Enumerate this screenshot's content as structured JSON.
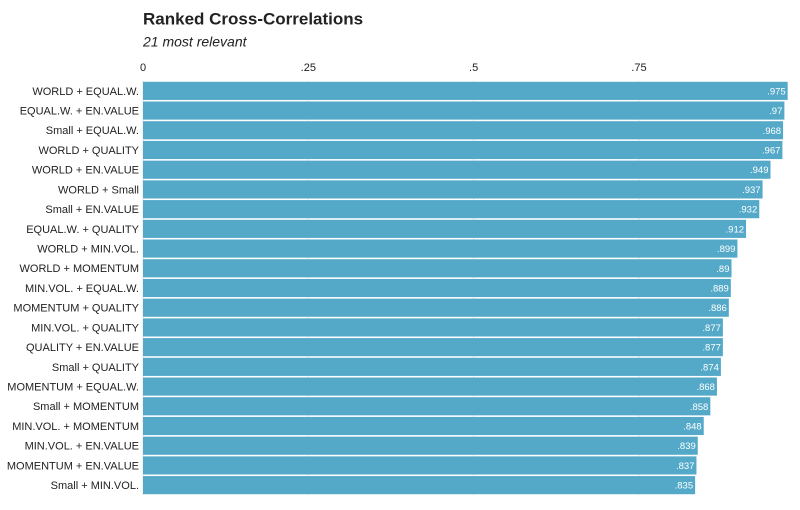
{
  "chart_data": {
    "type": "barh",
    "title": "Ranked Cross-Correlations",
    "subtitle": "21 most relevant",
    "categories": [
      "WORLD + EQUAL.W.",
      "EQUAL.W. + EN.VALUE",
      "Small + EQUAL.W.",
      "WORLD + QUALITY",
      "WORLD + EN.VALUE",
      "WORLD + Small",
      "Small + EN.VALUE",
      "EQUAL.W. + QUALITY",
      "WORLD + MIN.VOL.",
      "WORLD + MOMENTUM",
      "MIN.VOL. + EQUAL.W.",
      "MOMENTUM + QUALITY",
      "MIN.VOL. + QUALITY",
      "QUALITY + EN.VALUE",
      "Small + QUALITY",
      "MOMENTUM + EQUAL.W.",
      "Small + MOMENTUM",
      "MIN.VOL. + MOMENTUM",
      "MIN.VOL. + EN.VALUE",
      "MOMENTUM + EN.VALUE",
      "Small + MIN.VOL."
    ],
    "values": [
      0.975,
      0.97,
      0.968,
      0.967,
      0.949,
      0.937,
      0.932,
      0.912,
      0.899,
      0.89,
      0.889,
      0.886,
      0.877,
      0.877,
      0.874,
      0.868,
      0.858,
      0.848,
      0.839,
      0.837,
      0.835
    ],
    "value_labels": [
      ".975",
      ".97",
      ".968",
      ".967",
      ".949",
      ".937",
      ".932",
      ".912",
      ".899",
      ".89",
      ".889",
      ".886",
      ".877",
      ".877",
      ".874",
      ".868",
      ".858",
      ".848",
      ".839",
      ".837",
      ".835"
    ],
    "color": "#54a9c9",
    "xlim": [
      0,
      0.98
    ],
    "xticks": [
      0,
      {
        "value": 0.25,
        "label": ".25"
      },
      {
        "value": 0.5,
        "label": ".5"
      },
      {
        "value": 0.75,
        "label": ".75"
      }
    ],
    "grid": true
  }
}
